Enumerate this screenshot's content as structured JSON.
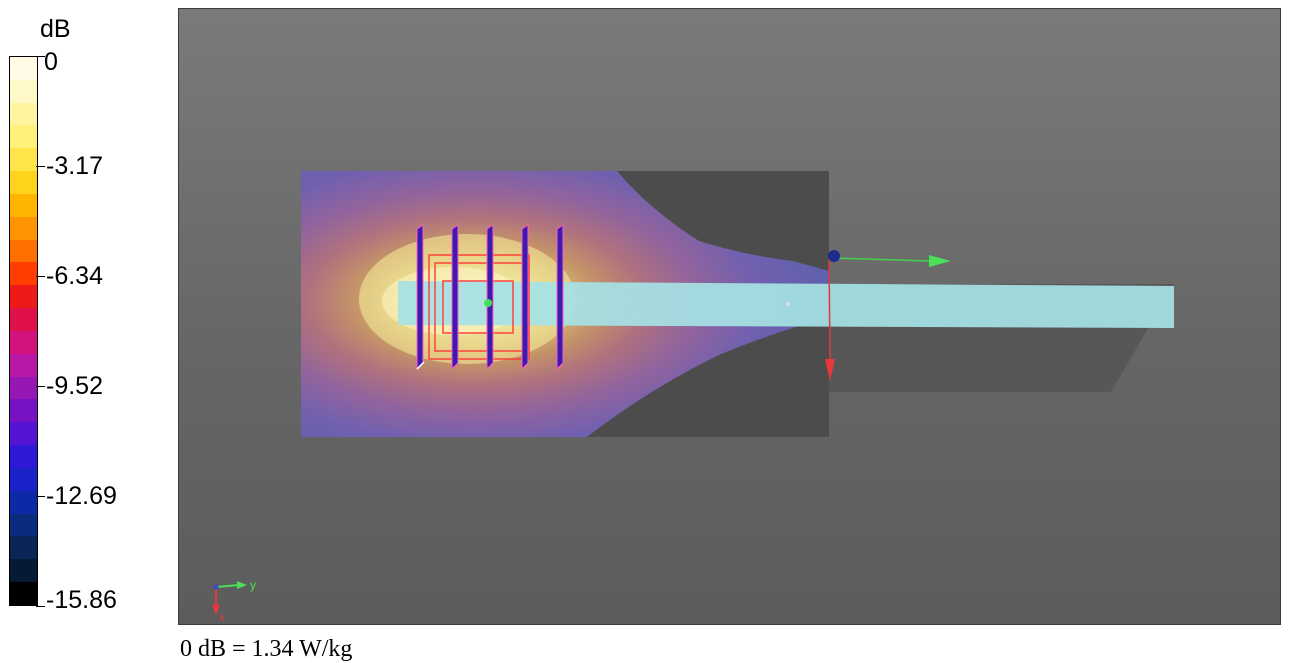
{
  "legend": {
    "unit": "dB",
    "ticks": [
      "0",
      "-3.17",
      "-6.34",
      "-9.52",
      "-12.69",
      "-15.86"
    ],
    "colors": [
      "#fffbe6",
      "#fff9c8",
      "#fff5a0",
      "#fff07a",
      "#ffe54a",
      "#ffd21c",
      "#ffb400",
      "#ff9400",
      "#ff6f00",
      "#ff3e00",
      "#ee1a18",
      "#e0104a",
      "#d4127e",
      "#b817a8",
      "#9617b4",
      "#7612c4",
      "#5414d2",
      "#2f18d8",
      "#1a22c8",
      "#0c2aa6",
      "#0a2c7e",
      "#0a2656",
      "#061a34",
      "#000000"
    ]
  },
  "viewport": {
    "background_color": "#6e6e6e",
    "axis_triad": {
      "y_label": "y",
      "x_label": "x"
    }
  },
  "footer": {
    "note": "0 dB = 1.34 W/kg"
  }
}
